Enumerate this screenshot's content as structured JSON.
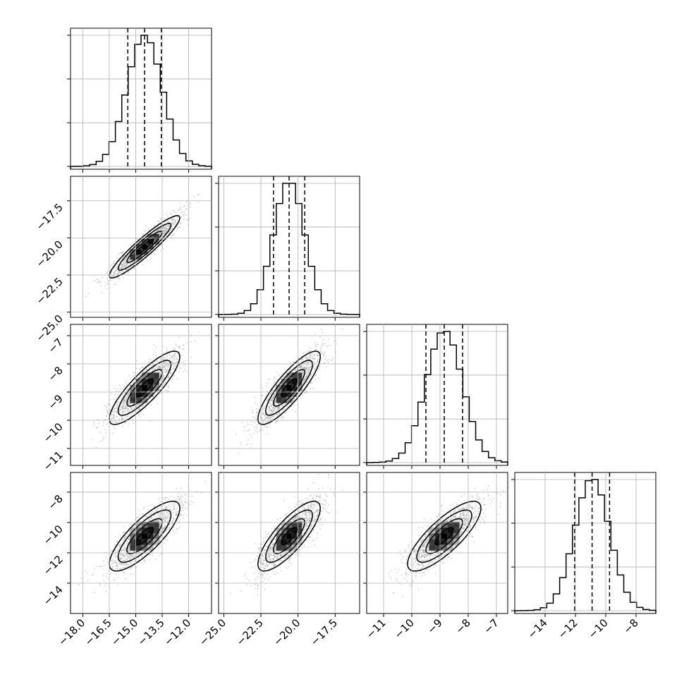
{
  "chart_data": {
    "type": "corner",
    "parameters": [
      {
        "range": [
          -18.7,
          -10.7
        ],
        "ticks": [
          {
            "v": -18.0,
            "label": "−18.0"
          },
          {
            "v": -16.5,
            "label": "−16.5"
          },
          {
            "v": -15.0,
            "label": "−15.0"
          },
          {
            "v": -13.5,
            "label": "−13.5"
          },
          {
            "v": -12.0,
            "label": "−12.0"
          }
        ],
        "median": -14.5,
        "sigma": 1.0,
        "quantiles": [
          -15.45,
          -14.5,
          -13.55
        ]
      },
      {
        "range": [
          -25.35,
          -15.85
        ],
        "ticks": [
          {
            "v": -25.0,
            "label": "−25.0"
          },
          {
            "v": -22.5,
            "label": "−22.5"
          },
          {
            "v": -20.0,
            "label": "−20.0"
          },
          {
            "v": -17.5,
            "label": "−17.5"
          }
        ],
        "median": -20.6,
        "sigma": 1.05,
        "quantiles": [
          -21.65,
          -20.6,
          -19.55
        ]
      },
      {
        "range": [
          -11.6,
          -6.6
        ],
        "ticks": [
          {
            "v": -11,
            "label": "−11"
          },
          {
            "v": -10,
            "label": "−10"
          },
          {
            "v": -9,
            "label": "−9"
          },
          {
            "v": -8,
            "label": "−8"
          },
          {
            "v": -7,
            "label": "−7"
          }
        ],
        "median": -8.85,
        "sigma": 0.65,
        "quantiles": [
          -9.5,
          -8.85,
          -8.2
        ]
      },
      {
        "range": [
          -16.0,
          -6.7
        ],
        "ticks": [
          {
            "v": -14,
            "label": "−14"
          },
          {
            "v": -12,
            "label": "−12"
          },
          {
            "v": -10,
            "label": "−10"
          },
          {
            "v": -8,
            "label": "−8"
          }
        ],
        "median": -10.9,
        "sigma": 1.15,
        "quantiles": [
          -12.05,
          -10.9,
          -9.75
        ]
      }
    ],
    "correlations": [
      {
        "i": 1,
        "j": 0,
        "rho": 0.93
      },
      {
        "i": 2,
        "j": 0,
        "rho": 0.85
      },
      {
        "i": 2,
        "j": 1,
        "rho": 0.85
      },
      {
        "i": 3,
        "j": 0,
        "rho": 0.8
      },
      {
        "i": 3,
        "j": 1,
        "rho": 0.8
      },
      {
        "i": 3,
        "j": 2,
        "rho": 0.8
      }
    ],
    "contour_levels_sigma": [
      0.5,
      1.0,
      1.5,
      2.0
    ],
    "grid": true,
    "colors": {
      "line": "#000000",
      "grid": "#b0b0b0",
      "points": "#999999"
    }
  }
}
